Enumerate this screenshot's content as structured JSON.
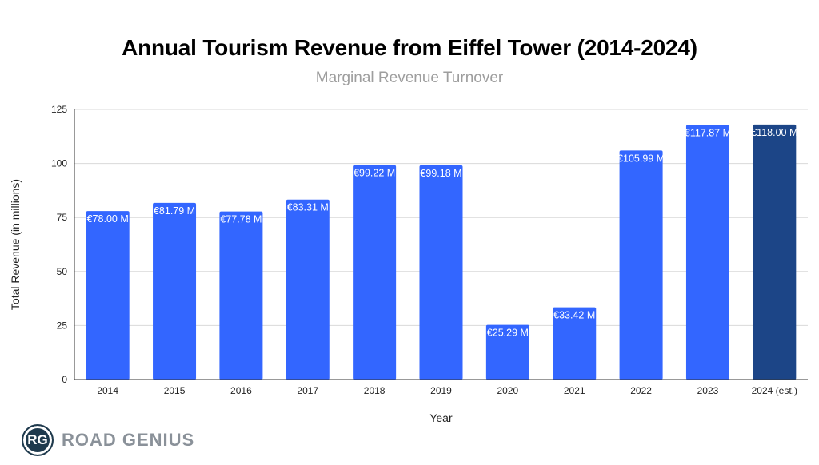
{
  "chart_data": {
    "type": "bar",
    "title": "Annual Tourism Revenue from Eiffel Tower (2014-2024)",
    "subtitle": "Marginal Revenue Turnover",
    "xlabel": "Year",
    "ylabel": "Total Revenue (in millions)",
    "ylim": [
      0,
      125
    ],
    "yticks": [
      0,
      25,
      50,
      75,
      100,
      125
    ],
    "grid": true,
    "categories": [
      "2014",
      "2015",
      "2016",
      "2017",
      "2018",
      "2019",
      "2020",
      "2021",
      "2022",
      "2023",
      "2024 (est.)"
    ],
    "values": [
      78.0,
      81.79,
      77.78,
      83.31,
      99.22,
      99.18,
      25.29,
      33.42,
      105.99,
      117.87,
      118.0
    ],
    "data_labels": [
      "€78.00 M",
      "€81.79 M",
      "€77.78 M",
      "€83.31 M",
      "€99.22 M",
      "€99.18 M",
      "€25.29 M",
      "€33.42 M",
      "€105.99 M",
      "€117.87 M",
      "€118.00 M"
    ],
    "colors": {
      "actual": "#3366ff",
      "estimate": "#1c4587",
      "grid": "#d9d9d9",
      "axis": "#333333"
    },
    "estimate_index": 10
  },
  "brand": {
    "logo_initials": "RG",
    "name": "ROAD GENIUS"
  }
}
